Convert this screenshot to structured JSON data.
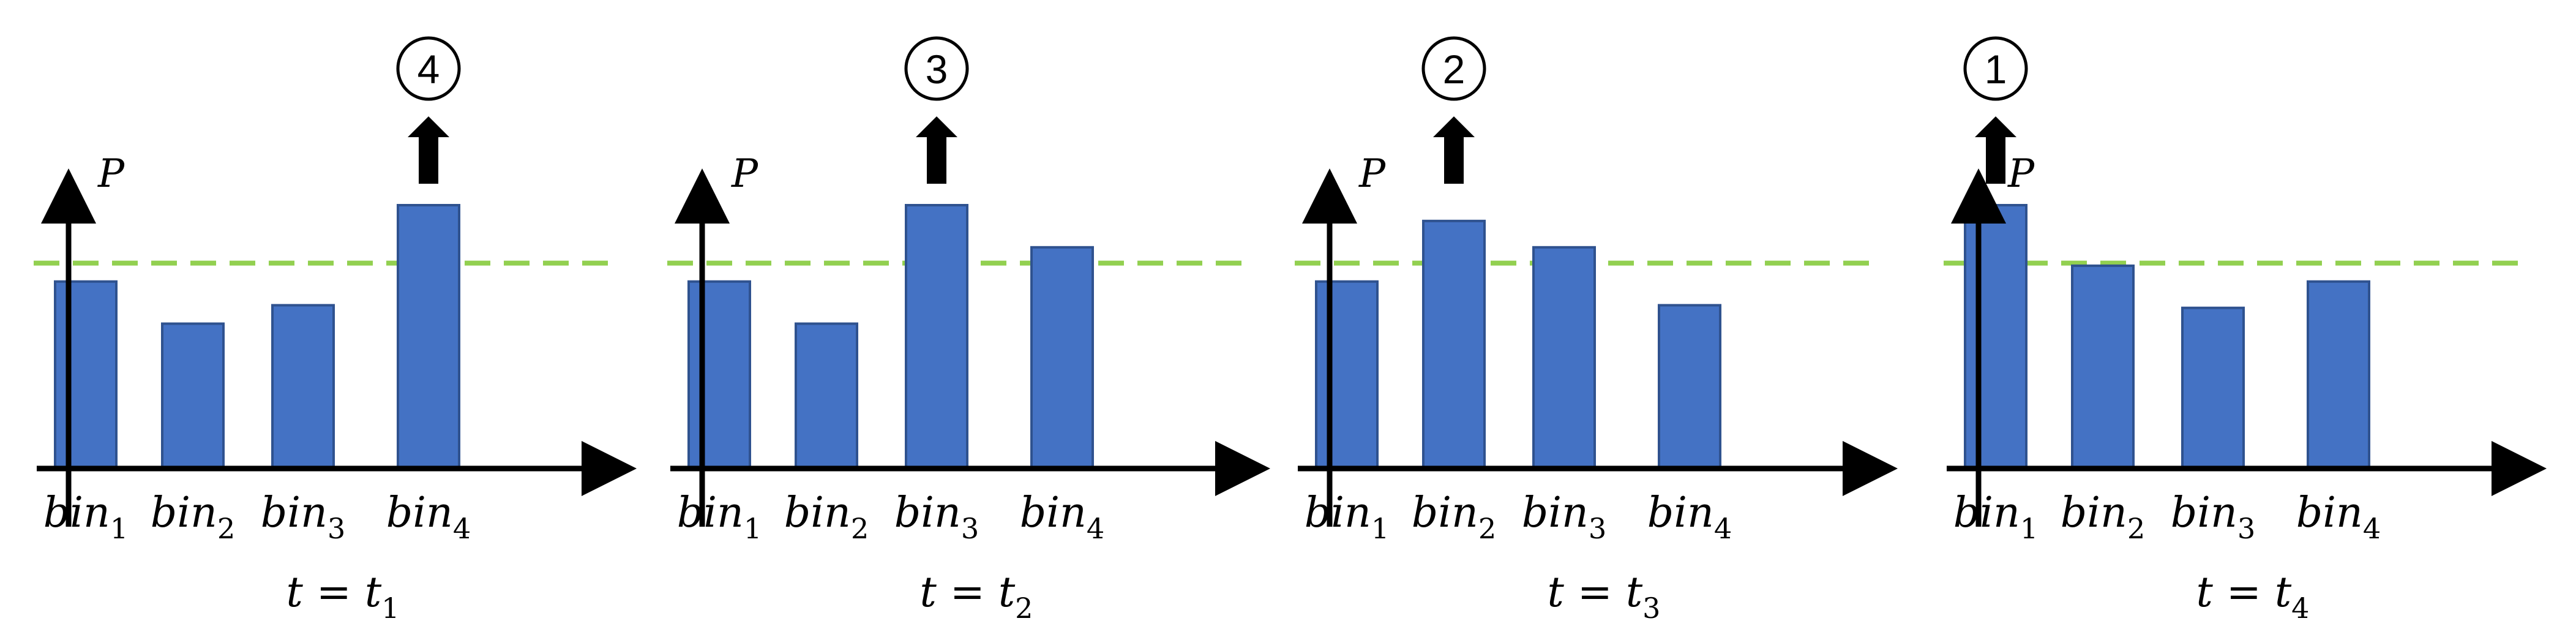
{
  "colors": {
    "bar_fill": "#4472c4",
    "bar_stroke": "#2f528f",
    "threshold_line": "#92d050",
    "axis": "#000000",
    "arrow": "#000000"
  },
  "axis_label": "P",
  "bin_label_base": "bin",
  "time_label_lhs": "t",
  "time_label_eq": "=",
  "time_label_rhs": "t",
  "threshold": 0.78,
  "panels": [
    {
      "time_subscript": "1",
      "top_bin": 4,
      "rank_number": "4",
      "bins": [
        {
          "subscript": "1",
          "value": 0.71
        },
        {
          "subscript": "2",
          "value": 0.55
        },
        {
          "subscript": "3",
          "value": 0.62
        },
        {
          "subscript": "4",
          "value": 1.0
        }
      ]
    },
    {
      "time_subscript": "2",
      "top_bin": 3,
      "rank_number": "3",
      "bins": [
        {
          "subscript": "1",
          "value": 0.71
        },
        {
          "subscript": "2",
          "value": 0.55
        },
        {
          "subscript": "3",
          "value": 1.0
        },
        {
          "subscript": "4",
          "value": 0.84
        }
      ]
    },
    {
      "time_subscript": "3",
      "top_bin": 2,
      "rank_number": "2",
      "bins": [
        {
          "subscript": "1",
          "value": 0.71
        },
        {
          "subscript": "2",
          "value": 0.94
        },
        {
          "subscript": "3",
          "value": 0.84
        },
        {
          "subscript": "4",
          "value": 0.62
        }
      ]
    },
    {
      "time_subscript": "4",
      "top_bin": 1,
      "rank_number": "1",
      "bins": [
        {
          "subscript": "1",
          "value": 1.0
        },
        {
          "subscript": "2",
          "value": 0.77
        },
        {
          "subscript": "3",
          "value": 0.61
        },
        {
          "subscript": "4",
          "value": 0.71
        }
      ]
    }
  ]
}
